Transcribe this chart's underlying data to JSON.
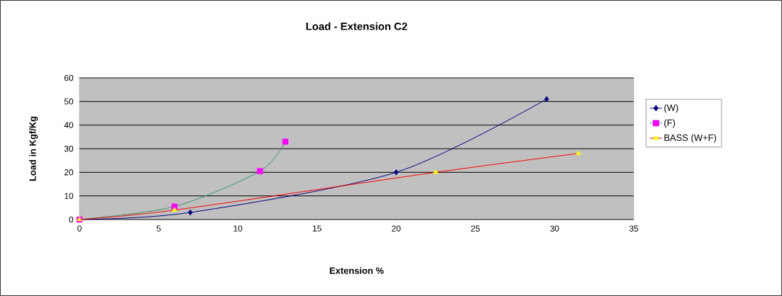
{
  "chart_data": {
    "type": "line",
    "title": "Load - Extension C2",
    "xlabel": "Extension %",
    "ylabel": "Load in Kgf/Kg",
    "xlim": [
      0,
      35
    ],
    "xticks": [
      0,
      5,
      10,
      15,
      20,
      25,
      30,
      35
    ],
    "ylim": [
      0,
      60
    ],
    "yticks": [
      0,
      10,
      20,
      30,
      40,
      50,
      60
    ],
    "grid": "y",
    "legend": "right",
    "series": [
      {
        "name": "(W)",
        "color": "#000080",
        "colors": [
          "#000080",
          "#000080",
          "#000080",
          "#000080"
        ],
        "marker": "diamond",
        "x": [
          0,
          7,
          20,
          29.5
        ],
        "values": [
          0,
          3,
          20,
          51
        ]
      },
      {
        "name": "(F)",
        "color": "#339966",
        "colors": [
          "#ff00ff",
          "#ff00ff",
          "#ff00ff",
          "#ff00ff"
        ],
        "marker": "square",
        "x": [
          0,
          6,
          11.4,
          13
        ],
        "values": [
          0,
          5.5,
          20.5,
          33
        ]
      },
      {
        "name": "BASS (W+F)",
        "color": "#ff0000",
        "colors": [
          "#ffff00",
          "#ffff00",
          "#ffff00",
          "#ffff00"
        ],
        "marker": "triangle",
        "x": [
          0,
          6,
          22.5,
          31.5
        ],
        "values": [
          0,
          4,
          20,
          28
        ]
      }
    ]
  }
}
